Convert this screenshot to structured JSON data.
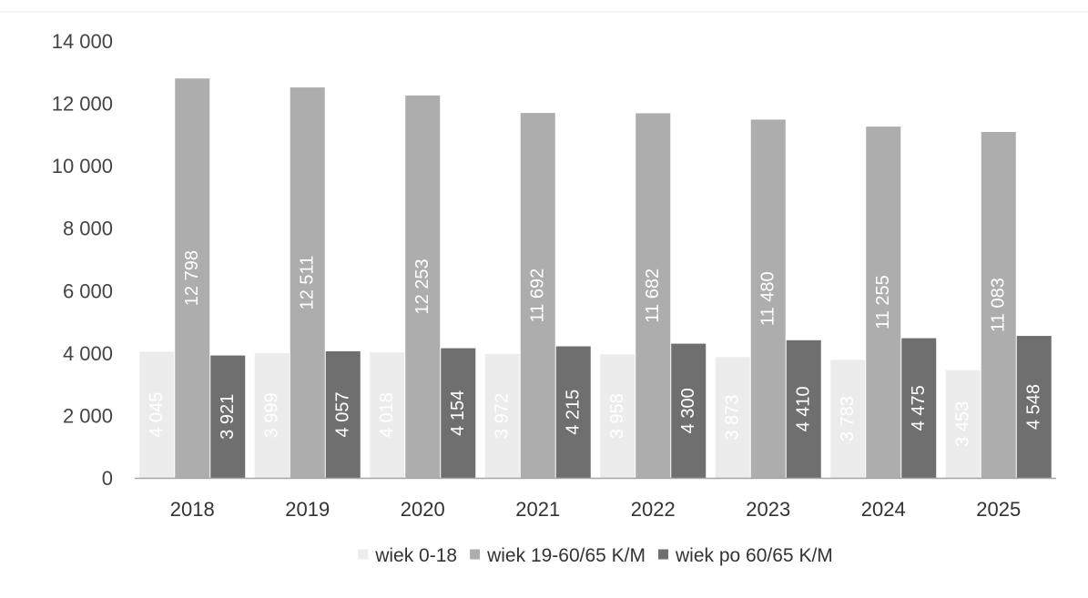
{
  "chart_data": {
    "type": "bar",
    "categories": [
      "2018",
      "2019",
      "2020",
      "2021",
      "2022",
      "2023",
      "2024",
      "2025"
    ],
    "series": [
      {
        "name": "wiek 0-18",
        "values": [
          4045,
          3999,
          4018,
          3972,
          3958,
          3873,
          3783,
          3453
        ],
        "color": "#ececec",
        "labels": [
          "4 045",
          "3 999",
          "4 018",
          "3 972",
          "3 958",
          "3 873",
          "3 783",
          "3 453"
        ]
      },
      {
        "name": "wiek 19-60/65 K/M",
        "values": [
          12798,
          12511,
          12253,
          11692,
          11682,
          11480,
          11255,
          11083
        ],
        "color": "#adadad",
        "labels": [
          "12 798",
          "12 511",
          "12 253",
          "11 692",
          "11 682",
          "11 480",
          "11 255",
          "11 083"
        ]
      },
      {
        "name": "wiek po 60/65 K/M",
        "values": [
          3921,
          4057,
          4154,
          4215,
          4300,
          4410,
          4475,
          4548
        ],
        "color": "#6f6f6f",
        "labels": [
          "3 921",
          "4 057",
          "4 154",
          "4 215",
          "4 300",
          "4 410",
          "4 475",
          "4 548"
        ]
      }
    ],
    "ylim": [
      0,
      14000
    ],
    "yticks": [
      0,
      2000,
      4000,
      6000,
      8000,
      10000,
      12000,
      14000
    ],
    "ytick_labels": [
      "0",
      "2 000",
      "4 000",
      "6 000",
      "8 000",
      "10 000",
      "12 000",
      "14 000"
    ],
    "grid": false,
    "legend_position": "bottom",
    "data_label_orientation": "vertical"
  }
}
